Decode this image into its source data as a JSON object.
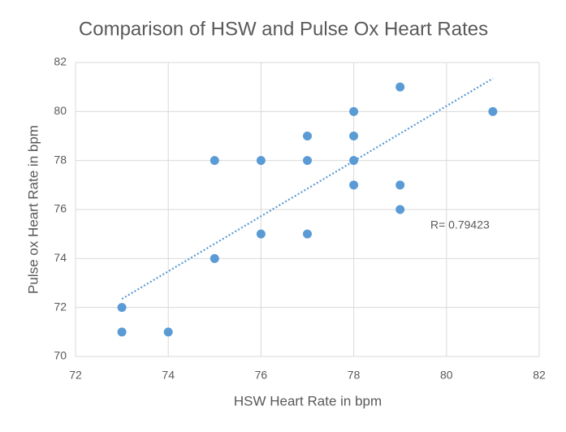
{
  "chart_data": {
    "type": "scatter",
    "title": "Comparison of HSW and Pulse Ox Heart Rates",
    "x_label": "HSW Heart Rate in bpm",
    "y_label": "Pulse ox Heart Rate in bpm",
    "annotation": "R= 0.79423",
    "series": [
      {
        "color": "#5b9bd5",
        "x": [
          73,
          73,
          74,
          75,
          75,
          76,
          76,
          77,
          77,
          77,
          78,
          78,
          78,
          78,
          79,
          79,
          79,
          81
        ],
        "y": [
          72,
          71,
          71,
          78,
          74,
          78,
          75,
          79,
          78,
          75,
          80,
          79,
          78,
          77,
          81,
          77,
          76,
          80
        ]
      }
    ],
    "trendline": {
      "color": "#5b9bd5",
      "x": [
        73,
        81
      ],
      "y": [
        72.35,
        81.35
      ]
    },
    "xlim": [
      72,
      82
    ],
    "xticks": [
      72,
      74,
      76,
      78,
      80,
      82
    ],
    "ylim": [
      70,
      82
    ],
    "yticks": [
      70,
      72,
      74,
      76,
      78,
      80,
      82
    ],
    "grid": true
  }
}
